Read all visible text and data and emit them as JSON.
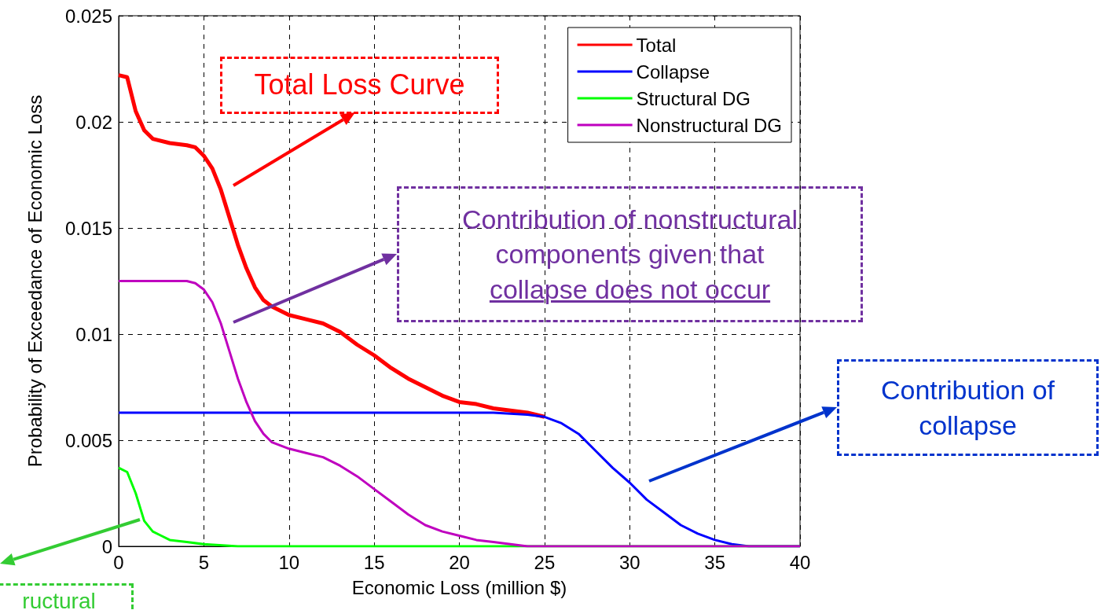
{
  "chart_data": {
    "type": "line",
    "xlabel": "Economic Loss (million $)",
    "ylabel": "Probability of Exceedance of Economic Loss",
    "xlim": [
      0,
      40
    ],
    "xticks": [
      0,
      5,
      10,
      15,
      20,
      25,
      30,
      35,
      40
    ],
    "ylim": [
      0,
      0.025
    ],
    "yticks": [
      0,
      0.005,
      0.01,
      0.015,
      0.02,
      0.025
    ],
    "grid": true,
    "legend": "top right",
    "marker": "none",
    "line_style": "solid",
    "series": [
      {
        "name": "Total",
        "color": "#ff0000",
        "x": [
          0,
          0.5,
          1,
          1.5,
          2,
          3,
          4,
          4.5,
          5,
          5.5,
          6,
          6.5,
          7,
          7.5,
          8,
          8.5,
          9,
          10,
          11,
          12,
          13,
          14,
          15,
          16,
          17,
          18,
          19,
          20,
          21,
          22,
          23,
          24,
          25
        ],
        "values": [
          0.0222,
          0.0221,
          0.0205,
          0.0196,
          0.0192,
          0.019,
          0.0189,
          0.0188,
          0.0184,
          0.0178,
          0.0168,
          0.0155,
          0.0142,
          0.0131,
          0.0122,
          0.0116,
          0.0113,
          0.0109,
          0.0107,
          0.0105,
          0.0101,
          0.0095,
          0.009,
          0.0084,
          0.0079,
          0.0075,
          0.0071,
          0.0068,
          0.0067,
          0.0065,
          0.0064,
          0.0063,
          0.0061
        ]
      },
      {
        "name": "Collapse",
        "color": "#0000ff",
        "x": [
          0,
          22,
          24,
          25,
          26,
          27,
          28,
          29,
          30,
          31,
          32,
          33,
          34,
          35,
          36,
          37,
          40
        ],
        "values": [
          0.0063,
          0.0063,
          0.0062,
          0.0061,
          0.0058,
          0.0053,
          0.0045,
          0.0037,
          0.003,
          0.0022,
          0.0016,
          0.001,
          0.0006,
          0.0003,
          0.0001,
          0,
          0
        ]
      },
      {
        "name": "Structural DG",
        "color": "#00ff00",
        "x": [
          0,
          0.5,
          1,
          1.5,
          2,
          2.5,
          3,
          4,
          5,
          7,
          40
        ],
        "values": [
          0.0037,
          0.0035,
          0.0025,
          0.0012,
          0.0007,
          0.0005,
          0.0003,
          0.0002,
          0.0001,
          0,
          0
        ]
      },
      {
        "name": "Nonstructural DG",
        "color": "#bf00bf",
        "x": [
          0,
          4,
          4.5,
          5,
          5.5,
          6,
          6.5,
          7,
          7.5,
          8,
          8.5,
          9,
          10,
          11,
          12,
          13,
          14,
          15,
          16,
          17,
          18,
          19,
          20,
          21,
          22,
          23,
          24,
          40
        ],
        "values": [
          0.0125,
          0.0125,
          0.0124,
          0.0121,
          0.0115,
          0.0105,
          0.0092,
          0.0079,
          0.0068,
          0.0059,
          0.0053,
          0.0049,
          0.0046,
          0.0044,
          0.0042,
          0.0038,
          0.0033,
          0.0027,
          0.0021,
          0.0015,
          0.001,
          0.0007,
          0.0005,
          0.0003,
          0.0002,
          0.0001,
          0,
          0
        ]
      }
    ],
    "annotations": [
      "Total Loss Curve",
      "Contribution of nonstructural\ncomponents given that\ncollapse does not occur",
      "Contribution of\ncollapse",
      "ructural"
    ]
  }
}
